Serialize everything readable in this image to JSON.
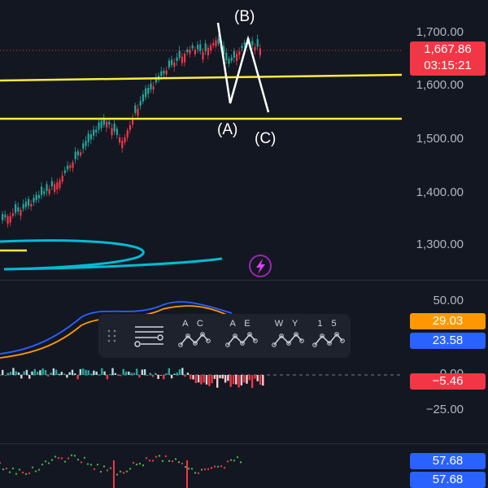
{
  "main_pane": {
    "price_axis": [
      "1,700.00",
      "1,600.00",
      "1,500.00",
      "1,400.00",
      "1,300.00"
    ],
    "current_price": "1,667.86",
    "countdown": "03:15:21",
    "price_tag_color": "#f23645",
    "wave_labels": {
      "a": "(A)",
      "b": "(B)",
      "c": "(C)"
    },
    "support_line_color": "#ffeb3b",
    "pattern_line_color": "#ffffff",
    "channel_color": "#00bcd4",
    "lightning_icon": "lightning-icon"
  },
  "oscillator_pane": {
    "axis": [
      "50.00",
      "0.00",
      "−25.00"
    ],
    "value_fast": "29.03",
    "value_fast_color": "#ff9800",
    "value_slow": "23.58",
    "value_slow_color": "#2962ff",
    "value_hist": "−5.46",
    "value_hist_color": "#f23645"
  },
  "bottom_pane": {
    "value_1": "57.68",
    "value_2": "57.68",
    "tag_color": "#2962ff"
  },
  "elliott_toolbar": {
    "drag_icon": "drag-handle-icon",
    "menu_icon": "list-settings-icon",
    "tools": [
      {
        "letters": "A C"
      },
      {
        "letters": "A E"
      },
      {
        "letters": "W Y"
      },
      {
        "letters": "1 5"
      }
    ]
  }
}
